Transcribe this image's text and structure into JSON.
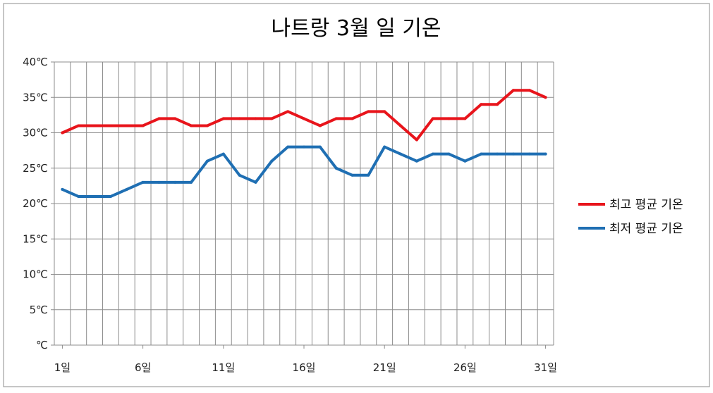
{
  "chart_data": {
    "type": "line",
    "title": "나트랑 3월 일 기온",
    "xlabel": "",
    "ylabel": "",
    "x": [
      1,
      2,
      3,
      4,
      5,
      6,
      7,
      8,
      9,
      10,
      11,
      12,
      13,
      14,
      15,
      16,
      17,
      18,
      19,
      20,
      21,
      22,
      23,
      24,
      25,
      26,
      27,
      28,
      29,
      30,
      31
    ],
    "xlim": [
      1,
      31
    ],
    "ylim": [
      0,
      40
    ],
    "x_ticks": [
      {
        "value": 1,
        "label": "1일"
      },
      {
        "value": 6,
        "label": "6일"
      },
      {
        "value": 11,
        "label": "11일"
      },
      {
        "value": 16,
        "label": "16일"
      },
      {
        "value": 21,
        "label": "21일"
      },
      {
        "value": 26,
        "label": "26일"
      },
      {
        "value": 31,
        "label": "31일"
      }
    ],
    "y_ticks": [
      {
        "value": 0,
        "label": "℃"
      },
      {
        "value": 5,
        "label": "5℃"
      },
      {
        "value": 10,
        "label": "10℃"
      },
      {
        "value": 15,
        "label": "15℃"
      },
      {
        "value": 20,
        "label": "20℃"
      },
      {
        "value": 25,
        "label": "25℃"
      },
      {
        "value": 30,
        "label": "30℃"
      },
      {
        "value": 35,
        "label": "35℃"
      },
      {
        "value": 40,
        "label": "40℃"
      }
    ],
    "grid": true,
    "legend_position": "right",
    "series": [
      {
        "name": "최고 평균 기온",
        "color": "#e8141b",
        "values": [
          30,
          31,
          31,
          31,
          31,
          31,
          32,
          32,
          31,
          31,
          32,
          32,
          32,
          32,
          33,
          32,
          31,
          32,
          32,
          33,
          33,
          31,
          29,
          32,
          32,
          32,
          34,
          34,
          36,
          36,
          35
        ]
      },
      {
        "name": "최저 평균 기온",
        "color": "#1f6fb3",
        "values": [
          22,
          21,
          21,
          21,
          22,
          23,
          23,
          23,
          23,
          26,
          27,
          24,
          23,
          26,
          28,
          28,
          28,
          25,
          24,
          24,
          28,
          27,
          26,
          27,
          27,
          26,
          27,
          27,
          27,
          27,
          27
        ]
      }
    ]
  }
}
